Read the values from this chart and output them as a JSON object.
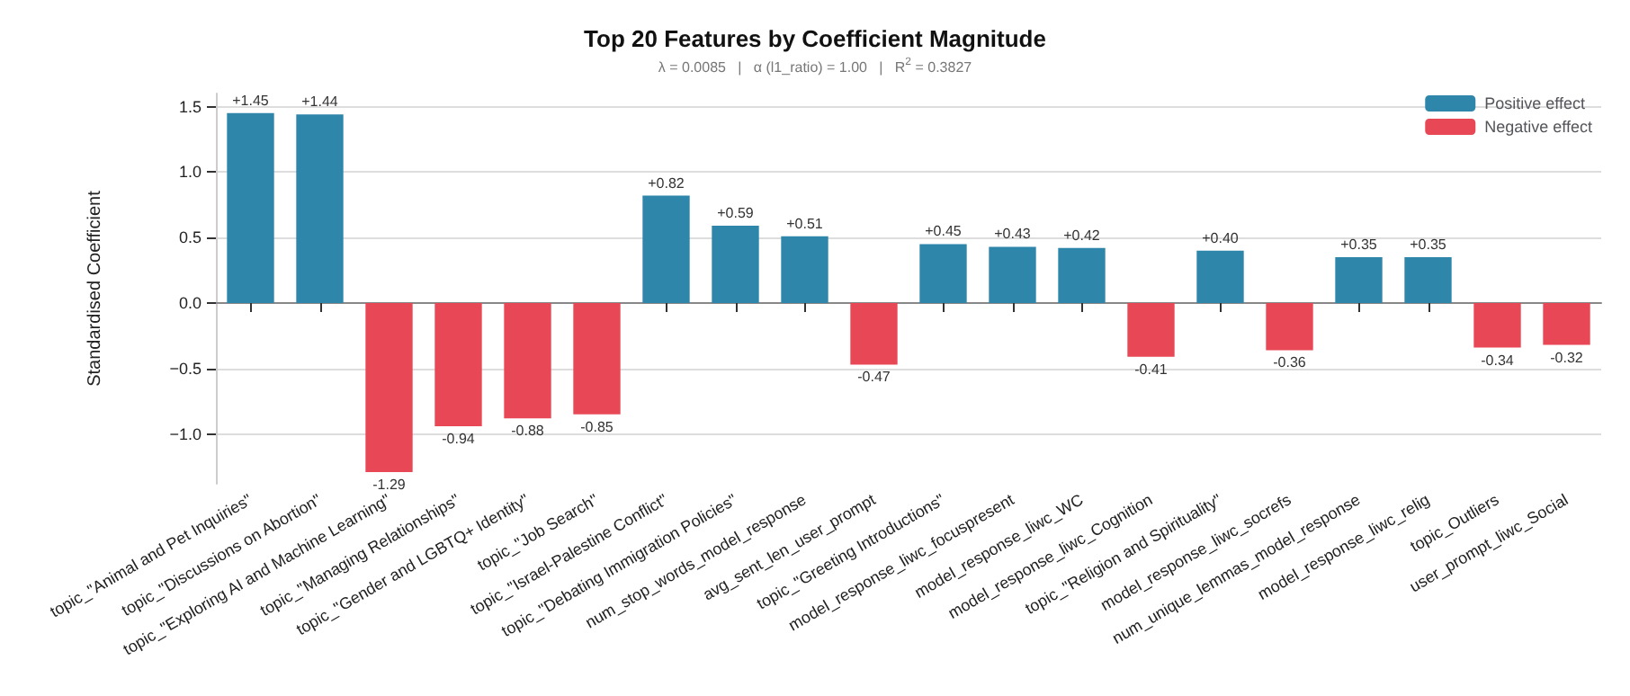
{
  "chart_data": {
    "type": "bar",
    "title": "Top 20 Features by Coefficient Magnitude",
    "subtitle": "λ = 0.0085   |   α (l1_ratio) = 1.00   |   R$^{2}$ = 0.3827",
    "ylabel": "Standardised Coefficient",
    "categories": [
      "topic_\"Animal and Pet Inquiries\"",
      "topic_\"Discussions on Abortion\"",
      "topic_\"Exploring AI and Machine Learning\"",
      "topic_\"Managing Relationships\"",
      "topic_\"Gender and LGBTQ+ Identity\"",
      "topic_\"Job Search\"",
      "topic_\"Israel-Palestine Conflict\"",
      "topic_\"Debating Immigration Policies\"",
      "num_stop_words_model_response",
      "avg_sent_len_user_prompt",
      "topic_\"Greeting Introductions\"",
      "model_response_liwc_focuspresent",
      "model_response_liwc_WC",
      "model_response_liwc_Cognition",
      "topic_\"Religion and Spirituality\"",
      "model_response_liwc_socrefs",
      "num_unique_lemmas_model_response",
      "model_response_liwc_relig",
      "topic_Outliers",
      "user_prompt_liwc_Social"
    ],
    "series": [
      {
        "name": "Positive effect",
        "color": "#2e86ab",
        "values": [
          1.45,
          1.44,
          null,
          null,
          null,
          null,
          0.82,
          0.59,
          0.51,
          null,
          0.45,
          0.43,
          0.42,
          null,
          0.4,
          null,
          0.35,
          0.35,
          null,
          null
        ],
        "value_labels": [
          "+1.45",
          "+1.44",
          null,
          null,
          null,
          null,
          "+0.82",
          "+0.59",
          "+0.51",
          null,
          "+0.45",
          "+0.43",
          "+0.42",
          null,
          "+0.40",
          null,
          "+0.35",
          "+0.35",
          null,
          null
        ]
      },
      {
        "name": "Negative effect",
        "color": "#e84855",
        "values": [
          null,
          null,
          -1.29,
          -0.94,
          -0.88,
          -0.85,
          null,
          null,
          null,
          -0.47,
          null,
          null,
          null,
          -0.41,
          null,
          -0.36,
          null,
          null,
          -0.34,
          -0.32
        ],
        "value_labels": [
          null,
          null,
          "-1.29",
          "-0.94",
          "-0.88",
          "-0.85",
          null,
          null,
          null,
          "-0.47",
          null,
          null,
          null,
          "-0.41",
          null,
          "-0.36",
          null,
          null,
          "-0.34",
          "-0.32"
        ]
      }
    ],
    "stacked": true,
    "ylim": [
      -1.38,
      1.6
    ],
    "yticks": [
      {
        "value": -1,
        "label": "−1.0"
      },
      {
        "value": -0.5,
        "label": "−0.5"
      },
      {
        "value": 0,
        "label": "0.0"
      },
      {
        "value": 0.5,
        "label": "0.5"
      },
      {
        "value": 1,
        "label": "1.0"
      },
      1.5
    ],
    "grid": "y",
    "legend": "top right"
  }
}
